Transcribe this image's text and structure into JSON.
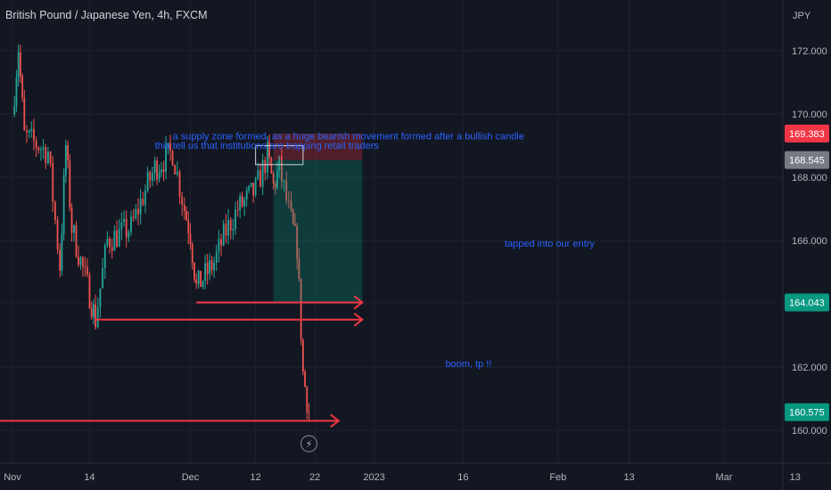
{
  "title": "British Pound / Japanese Yen, 4h, FXCM",
  "chart_data": {
    "type": "candlestick",
    "symbol": "GBPJPY",
    "axis": {
      "y_unit": "JPY",
      "y_ticks": [
        "172.000",
        "170.000",
        "168.000",
        "166.000",
        "164.000",
        "162.000",
        "160.000"
      ],
      "ylim": [
        159.0,
        173.5
      ],
      "x_ticks": [
        "Nov",
        "14",
        "Dec",
        "12",
        "22",
        "2023",
        "16",
        "Feb",
        "13",
        "Mar",
        "13"
      ]
    },
    "series": [
      {
        "points": [
          {
            "date": "2022-11-01",
            "value": 170.0
          },
          {
            "date": "2022-11-02",
            "value": 172.1
          },
          {
            "date": "2022-11-03",
            "value": 169.3
          },
          {
            "date": "2022-11-07",
            "value": 168.8
          },
          {
            "date": "2022-11-09",
            "value": 165.2
          },
          {
            "date": "2022-11-10",
            "value": 169.0
          },
          {
            "date": "2022-11-11",
            "value": 166.4
          },
          {
            "date": "2022-11-14",
            "value": 164.3
          },
          {
            "date": "2022-11-15",
            "value": 163.5
          },
          {
            "date": "2022-11-17",
            "value": 166.0
          },
          {
            "date": "2022-11-21",
            "value": 166.4
          },
          {
            "date": "2022-11-23",
            "value": 167.4
          },
          {
            "date": "2022-11-25",
            "value": 168.3
          },
          {
            "date": "2022-11-28",
            "value": 168.8
          },
          {
            "date": "2022-11-30",
            "value": 167.0
          },
          {
            "date": "2022-12-01",
            "value": 166.2
          },
          {
            "date": "2022-12-02",
            "value": 164.5
          },
          {
            "date": "2022-12-05",
            "value": 165.3
          },
          {
            "date": "2022-12-07",
            "value": 166.3
          },
          {
            "date": "2022-12-09",
            "value": 167.0
          },
          {
            "date": "2022-12-12",
            "value": 167.6
          },
          {
            "date": "2022-12-14",
            "value": 168.7
          },
          {
            "date": "2022-12-15",
            "value": 167.7
          },
          {
            "date": "2022-12-16",
            "value": 168.3
          },
          {
            "date": "2022-12-18",
            "value": 166.6
          },
          {
            "date": "2022-12-19",
            "value": 165.8
          },
          {
            "date": "2022-12-20",
            "value": 161.8
          },
          {
            "date": "2022-12-21",
            "value": 160.575
          }
        ]
      }
    ],
    "price_labels": [
      {
        "value": "169.383",
        "color": "#f23645"
      },
      {
        "value": "168.545",
        "color": "#787b86"
      },
      {
        "value": "164.043",
        "color": "#089981"
      },
      {
        "value": "160.575",
        "color": "#089981"
      }
    ],
    "annotations": [
      {
        "text": "a supply zone formed, as a huge bearish movement formed after a bullish candle",
        "date": "2022-11-28",
        "value": 169.2
      },
      {
        "text": "this tell us that institutions are trapping retail traders",
        "date": "2022-11-25",
        "value": 168.9
      },
      {
        "text": "tapped into our entry",
        "date": "2023-01-23",
        "value": 165.8
      },
      {
        "text": "boom, tp !!",
        "date": "2023-01-13",
        "value": 162.0
      }
    ],
    "position": {
      "type": "short",
      "stop": 168.545,
      "stop_upper": 169.383,
      "target": 164.043,
      "start_date": "2022-12-15",
      "end_date": "2022-12-30"
    },
    "levels": [
      {
        "value": 164.043,
        "from": "2022-12-02",
        "to": "2022-12-30"
      },
      {
        "value": 163.5,
        "from": "2022-11-15",
        "to": "2022-12-30"
      },
      {
        "value": 160.3,
        "from": "2022-10-27",
        "to": "2022-12-26"
      }
    ],
    "colors": {
      "up": "#26a69a",
      "down": "#ef5350",
      "line": "#f23645",
      "annotation": "#2962ff"
    }
  }
}
